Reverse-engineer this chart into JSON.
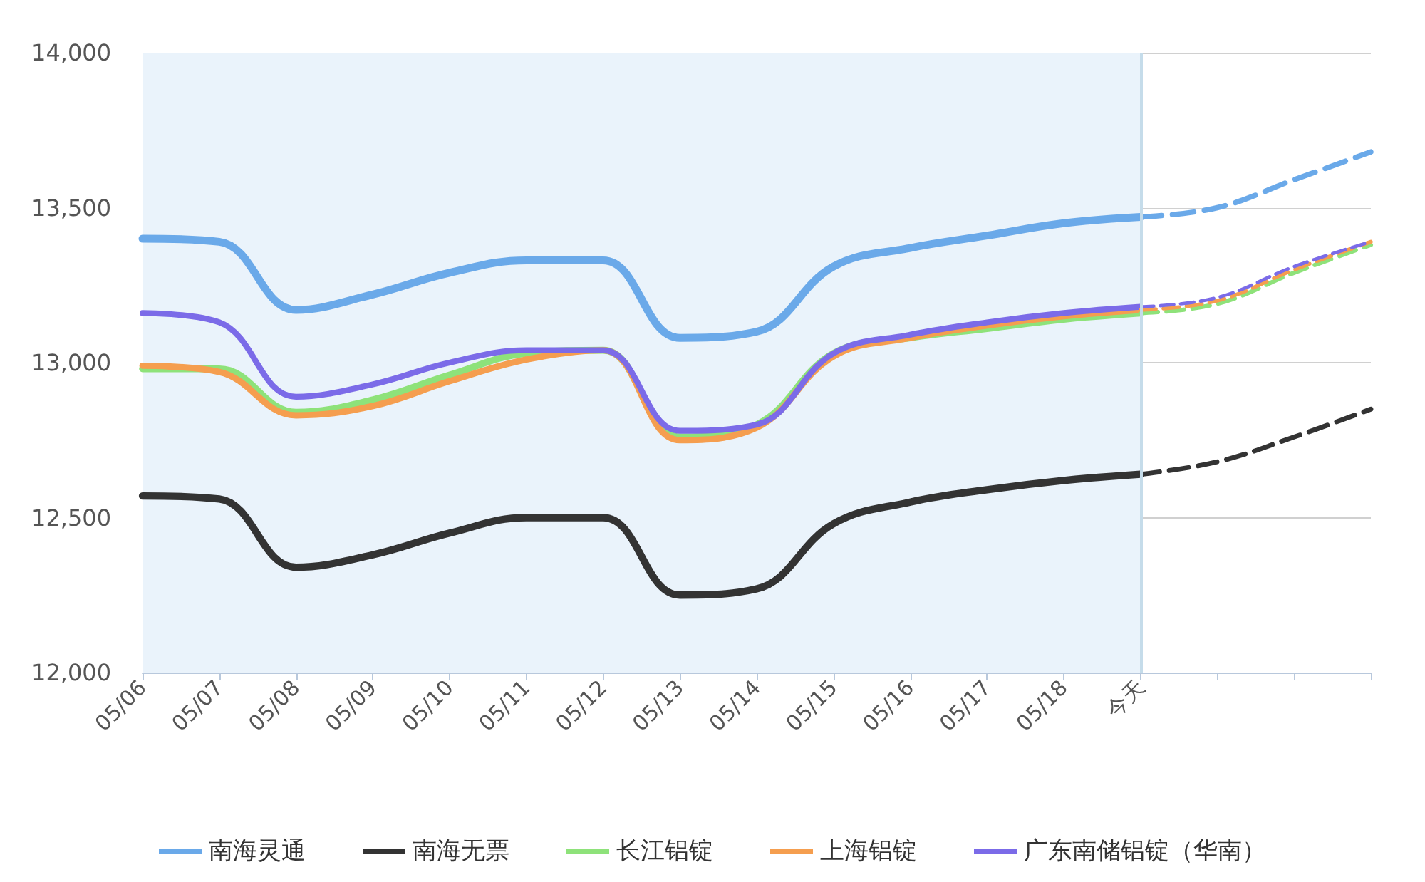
{
  "chart_data": {
    "type": "line",
    "categories": [
      "05/06",
      "05/07",
      "05/08",
      "05/09",
      "05/10",
      "05/11",
      "05/12",
      "05/13",
      "05/14",
      "05/15",
      "05/16",
      "05/17",
      "05/18",
      "今天",
      null,
      null,
      null
    ],
    "ylim": [
      12000,
      14000
    ],
    "yticks": [
      {
        "value": 12000,
        "label": "12,000"
      },
      {
        "value": 12500,
        "label": "12,500"
      },
      {
        "value": 13000,
        "label": "13,000"
      },
      {
        "value": 13500,
        "label": "13,500"
      },
      {
        "value": 14000,
        "label": "14,000"
      }
    ],
    "grid": "y",
    "legend": "bottom",
    "marker": "none",
    "bands": [
      {
        "axis": "x",
        "from": "05/06",
        "to": "今天",
        "color": "#eaf3fb"
      }
    ],
    "ref_lines": [
      {
        "axis": "x",
        "value": "今天",
        "color": "#c5dcea"
      }
    ],
    "series": [
      {
        "name": "南海灵通",
        "color": "#6aa9e9",
        "line_style": "solid",
        "values": [
          13400,
          13390,
          13170,
          13220,
          13290,
          13330,
          13330,
          13080,
          13100,
          13310,
          13370,
          13410,
          13450,
          13470,
          null,
          null,
          null
        ]
      },
      {
        "name": "南海无票",
        "color": "#333333",
        "line_style": "solid",
        "values": [
          12570,
          12560,
          12340,
          12380,
          12450,
          12500,
          12500,
          12250,
          12270,
          12480,
          12550,
          12590,
          12620,
          12640,
          null,
          null,
          null
        ]
      },
      {
        "name": "长江铝锭",
        "color": "#8ee27a",
        "line_style": "solid",
        "values": [
          12980,
          12980,
          12840,
          12880,
          12960,
          13030,
          13040,
          12760,
          12800,
          13030,
          13080,
          13110,
          13140,
          13160,
          null,
          null,
          null
        ]
      },
      {
        "name": "上海铝锭",
        "color": "#f59e4f",
        "line_style": "solid",
        "values": [
          12990,
          12970,
          12830,
          12860,
          12940,
          13010,
          13040,
          12750,
          12790,
          13020,
          13080,
          13120,
          13150,
          13170,
          null,
          null,
          null
        ]
      },
      {
        "name": "广东南储铝锭（华南）",
        "color": "#7b6be8",
        "line_style": "solid",
        "values": [
          13160,
          13130,
          12890,
          12930,
          13000,
          13040,
          13040,
          12780,
          12800,
          13030,
          13090,
          13130,
          13160,
          13180,
          null,
          null,
          null
        ]
      },
      {
        "color": "#6aa9e9",
        "line_style": "dashed",
        "values": [
          null,
          null,
          null,
          null,
          null,
          null,
          null,
          null,
          null,
          null,
          null,
          null,
          null,
          13470,
          13500,
          13590,
          13680
        ]
      },
      {
        "color": "#333333",
        "line_style": "dashed",
        "values": [
          null,
          null,
          null,
          null,
          null,
          null,
          null,
          null,
          null,
          null,
          null,
          null,
          null,
          12640,
          12680,
          12760,
          12850
        ]
      },
      {
        "color": "#8ee27a",
        "line_style": "dashed",
        "values": [
          null,
          null,
          null,
          null,
          null,
          null,
          null,
          null,
          null,
          null,
          null,
          null,
          null,
          13160,
          13190,
          13290,
          13380
        ]
      },
      {
        "color": "#f59e4f",
        "line_style": "dashed",
        "values": [
          null,
          null,
          null,
          null,
          null,
          null,
          null,
          null,
          null,
          null,
          null,
          null,
          null,
          13170,
          13200,
          13300,
          13390
        ]
      },
      {
        "color": "#7b6be8",
        "line_style": "dashed",
        "values": [
          null,
          null,
          null,
          null,
          null,
          null,
          null,
          null,
          null,
          null,
          null,
          null,
          null,
          13180,
          13210,
          13310,
          13390
        ]
      }
    ]
  }
}
